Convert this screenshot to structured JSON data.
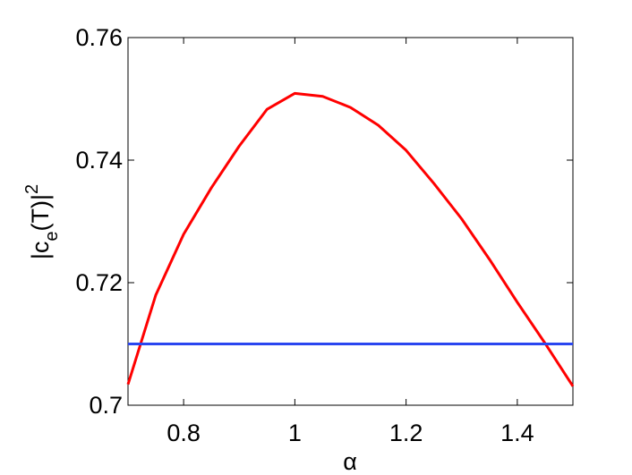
{
  "chart_data": {
    "type": "line",
    "xlabel": "α",
    "ylabel": {
      "base": "|c",
      "sub": "e",
      "mid": "(T)|",
      "sup": "2"
    },
    "x": [
      0.7,
      0.75,
      0.8,
      0.85,
      0.9,
      0.95,
      1.0,
      1.05,
      1.1,
      1.15,
      1.2,
      1.25,
      1.3,
      1.35,
      1.4,
      1.45,
      1.5
    ],
    "series": [
      {
        "color": "#ff0000",
        "values": [
          0.7034,
          0.718,
          0.7279,
          0.7355,
          0.7423,
          0.7483,
          0.7509,
          0.7504,
          0.7486,
          0.7457,
          0.7416,
          0.7362,
          0.7304,
          0.7238,
          0.7168,
          0.7101,
          0.7031
        ]
      },
      {
        "color": "#2a46f0",
        "values": [
          0.71,
          0.71,
          0.71,
          0.71,
          0.71,
          0.71,
          0.71,
          0.71,
          0.71,
          0.71,
          0.71,
          0.71,
          0.71,
          0.71,
          0.71,
          0.71,
          0.71
        ]
      }
    ],
    "xlim": [
      0.7,
      1.5
    ],
    "ylim": [
      0.7,
      0.76
    ],
    "xticks": [
      0.8,
      1,
      1.2,
      1.4
    ],
    "yticks": [
      0.7,
      0.72,
      0.74,
      0.76
    ]
  }
}
